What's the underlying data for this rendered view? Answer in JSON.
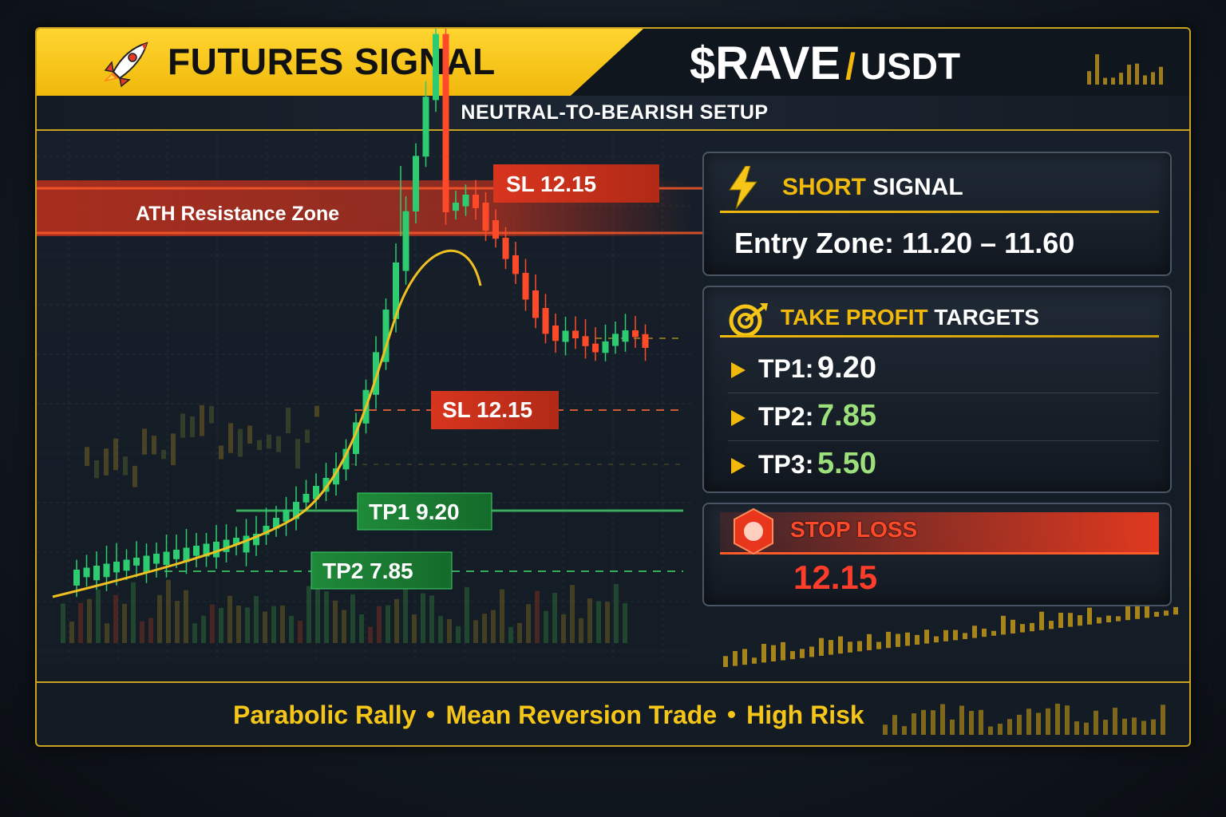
{
  "header": {
    "title": "FUTURES SIGNAL",
    "pair_base": "$RAVE",
    "pair_separator": "/",
    "pair_quote": "USDT",
    "subtitle": "NEUTRAL-TO-BEARISH SETUP"
  },
  "chart": {
    "resistance_label": "ATH Resistance Zone",
    "sl_top_label": "SL 12.15",
    "sl_mid_label": "SL 12.15",
    "tp1_label": "TP1 9.20",
    "tp2_label": "TP2 7.85"
  },
  "short_panel": {
    "title_highlight": "SHORT",
    "title_rest": " SIGNAL",
    "entry": "Entry Zone: 11.20 – 11.60"
  },
  "tp_panel": {
    "title_highlight": "TAKE PROFIT",
    "title_rest": " TARGETS",
    "targets": [
      {
        "label": "TP1:",
        "value": "9.20"
      },
      {
        "label": "TP2:",
        "value": "7.85"
      },
      {
        "label": "TP3:",
        "value": "5.50"
      }
    ]
  },
  "sl_panel": {
    "title": "STOP LOSS",
    "value": "12.15"
  },
  "footer": {
    "items": [
      "Parabolic Rally",
      "Mean Reversion Trade",
      "High Risk"
    ]
  },
  "colors": {
    "accent": "#f0b90b",
    "bull": "#2ecc71",
    "bear": "#ff4a2a",
    "tp1": "#ffffff",
    "tp_green": "#9be07a"
  }
}
